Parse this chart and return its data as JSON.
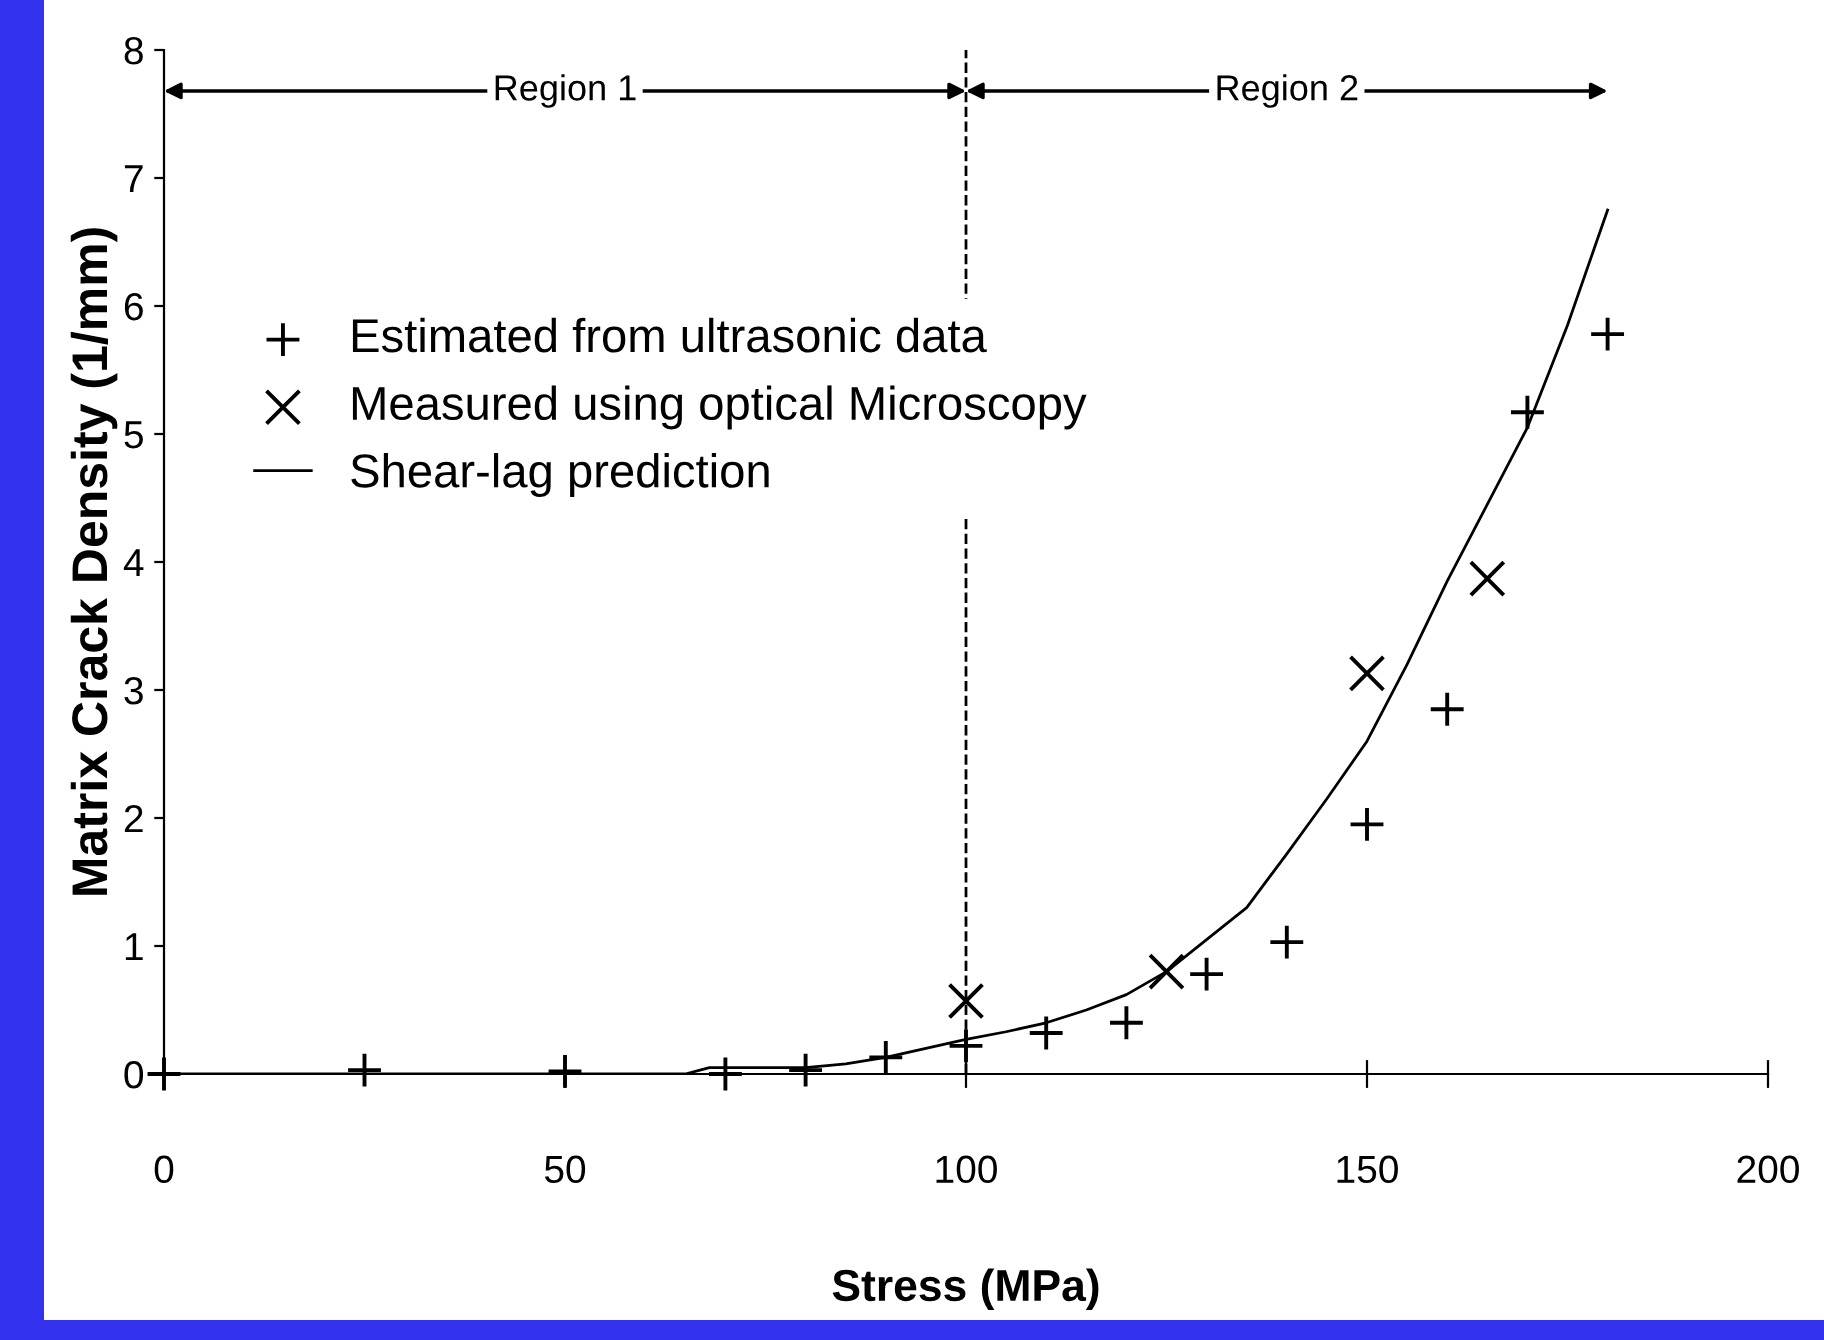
{
  "chart_data": {
    "type": "scatter",
    "xlabel": "Stress (MPa)",
    "ylabel": "Matrix Crack Density (1/mm)",
    "xlim": [
      0,
      200
    ],
    "ylim": [
      0,
      8
    ],
    "xticks": [
      0,
      50,
      100,
      150,
      200
    ],
    "yticks": [
      0,
      1,
      2,
      3,
      4,
      5,
      6,
      7,
      8
    ],
    "grid": false,
    "legend": "top left",
    "series": [
      {
        "name": "Estimated from ultrasonic data",
        "marker": "plus",
        "color": "#000000",
        "x": [
          0,
          25,
          50,
          70,
          80,
          90,
          100,
          110,
          120,
          130,
          140,
          150,
          160,
          170,
          180
        ],
        "values": [
          0,
          0.03,
          0.02,
          0,
          0.03,
          0.13,
          0.22,
          0.32,
          0.4,
          0.78,
          1.03,
          1.95,
          2.85,
          5.17,
          5.78
        ]
      },
      {
        "name": "Measured using optical Microscopy",
        "marker": "cross",
        "color": "#000000",
        "x": [
          100,
          125,
          150,
          165
        ],
        "values": [
          0.57,
          0.8,
          3.13,
          3.87
        ]
      },
      {
        "name": "Shear-lag prediction",
        "type": "line",
        "marker": "none",
        "line_style": "solid",
        "color": "#000000",
        "x": [
          0,
          65,
          68,
          80,
          85,
          90,
          95,
          100,
          105,
          110,
          115,
          120,
          125,
          130,
          135,
          140,
          145,
          150,
          155,
          160,
          165,
          170,
          175,
          180
        ],
        "values": [
          0,
          0,
          0.05,
          0.05,
          0.08,
          0.13,
          0.2,
          0.27,
          0.33,
          0.4,
          0.5,
          0.62,
          0.8,
          1.05,
          1.3,
          1.72,
          2.15,
          2.6,
          3.2,
          3.85,
          4.45,
          5.05,
          5.85,
          6.75
        ]
      }
    ],
    "ref_lines": [
      {
        "axis": "x",
        "value": 100,
        "line_style": "dashed",
        "color": "#000000"
      }
    ],
    "annotations": [
      "Region 1",
      "Region 2"
    ]
  }
}
